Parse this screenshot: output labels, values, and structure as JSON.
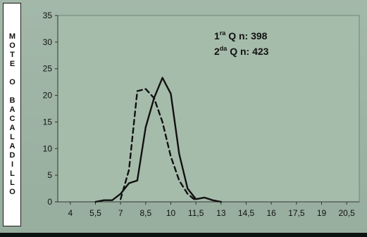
{
  "side_label": "MOTE O BACALADILLO",
  "chart_data": {
    "type": "line",
    "x": [
      4,
      4.5,
      5,
      5.5,
      6,
      6.5,
      7,
      7.5,
      8,
      8.5,
      9,
      9.5,
      10,
      10.5,
      11,
      11.5,
      12,
      12.5,
      13
    ],
    "x_tick_labels": [
      "4",
      "5,5",
      "7",
      "8,5",
      "10",
      "11,5",
      "13",
      "14,5",
      "16",
      "17,5",
      "19",
      "20,5"
    ],
    "x_ticks": [
      4,
      5.5,
      7,
      8.5,
      10,
      11.5,
      13,
      14.5,
      16,
      17.5,
      19,
      20.5
    ],
    "xlim": [
      3.25,
      21.25
    ],
    "ylim": [
      0,
      35
    ],
    "y_ticks": [
      0,
      5,
      10,
      15,
      20,
      25,
      30,
      35
    ],
    "series": [
      {
        "name": "1ra Q",
        "style": "solid",
        "color": "#111111",
        "points": [
          [
            5.5,
            0
          ],
          [
            6,
            0.3
          ],
          [
            6.5,
            0.3
          ],
          [
            7,
            1.5
          ],
          [
            7.5,
            3.5
          ],
          [
            8,
            4
          ],
          [
            8.5,
            14
          ],
          [
            9,
            19.5
          ],
          [
            9.5,
            23.3
          ],
          [
            10,
            20.3
          ],
          [
            10.5,
            9
          ],
          [
            11,
            2.5
          ],
          [
            11.5,
            0.5
          ],
          [
            12,
            0.8
          ],
          [
            12.5,
            0.3
          ],
          [
            13,
            0
          ]
        ]
      },
      {
        "name": "2da Q",
        "style": "dashed",
        "color": "#111111",
        "points": [
          [
            7,
            0.5
          ],
          [
            7.5,
            6
          ],
          [
            8,
            20.8
          ],
          [
            8.5,
            21.2
          ],
          [
            9,
            19.5
          ],
          [
            9.5,
            15
          ],
          [
            10,
            8.5
          ],
          [
            10.5,
            4
          ],
          [
            11,
            1.5
          ],
          [
            11.5,
            0.2
          ]
        ]
      }
    ],
    "annotations": [
      {
        "base": "1",
        "sup": "ra",
        "text": " Q n:  398"
      },
      {
        "base": "2",
        "sup": "da",
        "text": " Q n: 423"
      }
    ],
    "grid": false,
    "background": "#a6bcab"
  }
}
